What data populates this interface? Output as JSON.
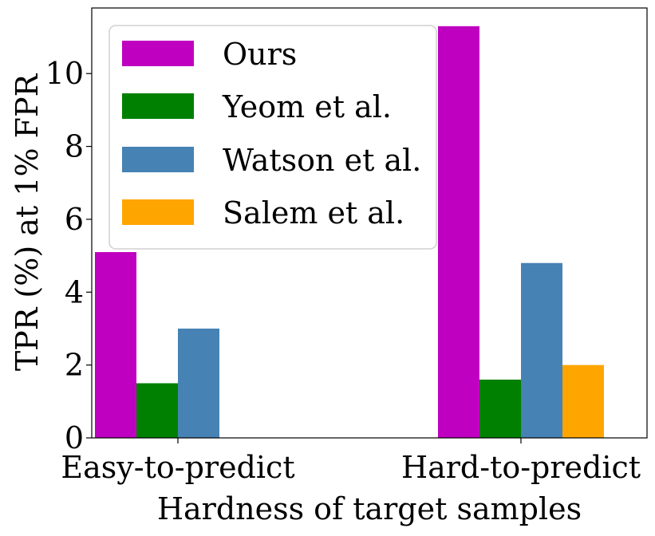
{
  "chart_data": {
    "type": "bar",
    "xlabel": "Hardness of target samples",
    "ylabel": "TPR (%) at 1% FPR",
    "categories": [
      "Easy-to-predict",
      "Hard-to-predict"
    ],
    "series": [
      {
        "name": "Ours",
        "color": "#c000c0",
        "values": [
          5.1,
          11.3
        ]
      },
      {
        "name": "Yeom et al.",
        "color": "#008000",
        "values": [
          1.5,
          1.6
        ]
      },
      {
        "name": "Watson et al.",
        "color": "#4682b4",
        "values": [
          3.0,
          4.8
        ]
      },
      {
        "name": "Salem et al.",
        "color": "#ffa500",
        "values": [
          0.0,
          2.0
        ]
      }
    ],
    "ylim": [
      0,
      11.8
    ],
    "yticks": [
      0,
      2,
      4,
      6,
      8,
      10
    ],
    "legend_position": "top-left",
    "grid": false
  }
}
